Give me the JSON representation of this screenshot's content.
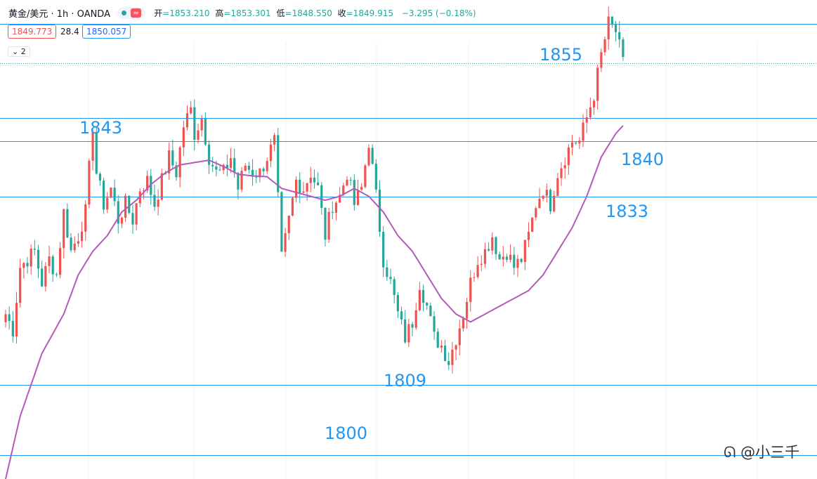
{
  "header": {
    "symbol": "黄金/美元 · 1h · OANDA",
    "wave_icon": "≈",
    "open_label": "开",
    "open": "=1853.210",
    "high_label": "高",
    "high": "=1853.301",
    "low_label": "低",
    "low": "=1848.550",
    "close_label": "收",
    "close": "=1849.915",
    "change": "−3.295 (−0.18%)"
  },
  "quotes": {
    "bid": "1849.773",
    "spread": "28.4",
    "ask": "1850.057"
  },
  "indicator_toggle": "2",
  "watermark": "@小三千",
  "colors": {
    "up": "#ef5350",
    "down": "#26a69a",
    "ma": "#b45ab9",
    "level": "#2196f3"
  },
  "chart_data": {
    "type": "candlestick",
    "ylim": [
      1797,
      1858
    ],
    "levels": [
      {
        "value": 1855,
        "label": "1855"
      },
      {
        "value": 1843,
        "label": "1843"
      },
      {
        "value": 1840,
        "label": "1840"
      },
      {
        "value": 1833,
        "label": "1833"
      },
      {
        "value": 1809,
        "label": "1809"
      },
      {
        "value": 1800,
        "label": "1800"
      }
    ],
    "last_price": 1849.915,
    "close_path": [
      [
        0,
        1818
      ],
      [
        2,
        1816
      ],
      [
        4,
        1824
      ],
      [
        6,
        1825
      ],
      [
        8,
        1826
      ],
      [
        10,
        1822
      ],
      [
        12,
        1825
      ],
      [
        14,
        1823
      ],
      [
        16,
        1831
      ],
      [
        18,
        1826
      ],
      [
        20,
        1828
      ],
      [
        22,
        1831
      ],
      [
        24,
        1842
      ],
      [
        25,
        1836
      ],
      [
        27,
        1832
      ],
      [
        29,
        1834
      ],
      [
        31,
        1830
      ],
      [
        33,
        1832
      ],
      [
        35,
        1830
      ],
      [
        37,
        1834
      ],
      [
        39,
        1835
      ],
      [
        41,
        1832
      ],
      [
        43,
        1835
      ],
      [
        45,
        1838
      ],
      [
        47,
        1836
      ],
      [
        49,
        1842
      ],
      [
        51,
        1844
      ],
      [
        52,
        1841
      ],
      [
        54,
        1843
      ],
      [
        56,
        1838
      ],
      [
        58,
        1836
      ],
      [
        60,
        1836
      ],
      [
        62,
        1838
      ],
      [
        64,
        1834
      ],
      [
        66,
        1837
      ],
      [
        68,
        1836
      ],
      [
        70,
        1836
      ],
      [
        72,
        1838
      ],
      [
        74,
        1840
      ],
      [
        76,
        1825
      ],
      [
        78,
        1830
      ],
      [
        80,
        1835
      ],
      [
        82,
        1834
      ],
      [
        84,
        1836
      ],
      [
        86,
        1834
      ],
      [
        88,
        1828
      ],
      [
        90,
        1832
      ],
      [
        92,
        1833
      ],
      [
        94,
        1836
      ],
      [
        96,
        1832
      ],
      [
        98,
        1834
      ],
      [
        100,
        1840
      ],
      [
        102,
        1833
      ],
      [
        104,
        1825
      ],
      [
        106,
        1822
      ],
      [
        108,
        1818
      ],
      [
        110,
        1815
      ],
      [
        112,
        1817
      ],
      [
        114,
        1822
      ],
      [
        116,
        1819
      ],
      [
        118,
        1815
      ],
      [
        120,
        1814
      ],
      [
        122,
        1812
      ],
      [
        124,
        1815
      ],
      [
        126,
        1818
      ],
      [
        128,
        1822
      ],
      [
        130,
        1825
      ],
      [
        132,
        1826
      ],
      [
        134,
        1828
      ],
      [
        136,
        1825
      ],
      [
        138,
        1826
      ],
      [
        140,
        1824
      ],
      [
        142,
        1825
      ],
      [
        144,
        1828
      ],
      [
        146,
        1832
      ],
      [
        148,
        1834
      ],
      [
        150,
        1832
      ],
      [
        152,
        1836
      ],
      [
        154,
        1838
      ],
      [
        156,
        1840
      ],
      [
        158,
        1840
      ],
      [
        160,
        1843
      ],
      [
        162,
        1846
      ],
      [
        164,
        1851
      ],
      [
        166,
        1855
      ],
      [
        168,
        1854
      ],
      [
        170,
        1849.9
      ]
    ],
    "ma_path": [
      [
        0,
        1797
      ],
      [
        4,
        1805
      ],
      [
        10,
        1813
      ],
      [
        16,
        1818
      ],
      [
        20,
        1823
      ],
      [
        24,
        1826
      ],
      [
        28,
        1828
      ],
      [
        32,
        1831
      ],
      [
        36,
        1832.5
      ],
      [
        40,
        1834.5
      ],
      [
        44,
        1836
      ],
      [
        48,
        1837
      ],
      [
        52,
        1837.3
      ],
      [
        56,
        1837.6
      ],
      [
        60,
        1836.8
      ],
      [
        64,
        1835.8
      ],
      [
        68,
        1835.6
      ],
      [
        72,
        1835.5
      ],
      [
        76,
        1834
      ],
      [
        80,
        1833.5
      ],
      [
        84,
        1833
      ],
      [
        88,
        1832.5
      ],
      [
        92,
        1833
      ],
      [
        96,
        1834
      ],
      [
        100,
        1833
      ],
      [
        104,
        1831
      ],
      [
        108,
        1828
      ],
      [
        112,
        1826
      ],
      [
        116,
        1823
      ],
      [
        120,
        1820
      ],
      [
        124,
        1818
      ],
      [
        128,
        1817
      ],
      [
        132,
        1818
      ],
      [
        136,
        1819
      ],
      [
        140,
        1820
      ],
      [
        144,
        1821
      ],
      [
        148,
        1823
      ],
      [
        152,
        1826
      ],
      [
        156,
        1829
      ],
      [
        160,
        1833
      ],
      [
        164,
        1838
      ],
      [
        168,
        1841
      ],
      [
        170,
        1842
      ]
    ]
  }
}
